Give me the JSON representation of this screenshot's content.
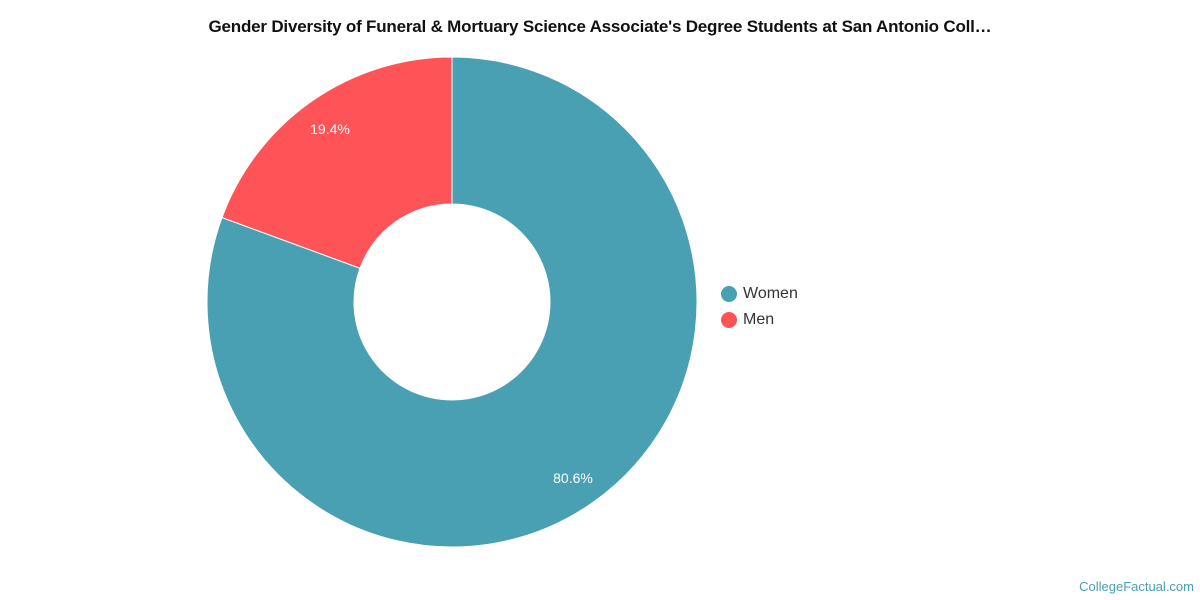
{
  "chart_data": {
    "type": "pie",
    "subtype": "donut",
    "title": "Gender Diversity of Funeral & Mortuary Science Associate's Degree Students at San Antonio Coll…",
    "categories": [
      "Women",
      "Men"
    ],
    "values": [
      80.6,
      19.4
    ],
    "labels": [
      "80.6%",
      "19.4%"
    ],
    "colors": [
      "#4aa0b3",
      "#fe5457"
    ],
    "legend_position": "right"
  },
  "legend": {
    "items": [
      {
        "label": "Women",
        "color": "#4aa0b3"
      },
      {
        "label": "Men",
        "color": "#fe5457"
      }
    ]
  },
  "credit": "CollegeFactual.com"
}
